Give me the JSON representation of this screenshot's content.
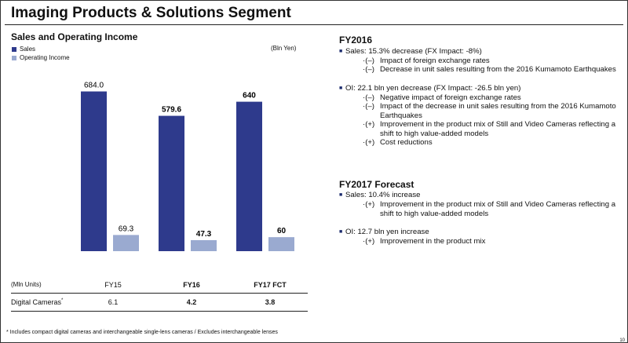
{
  "title": "Imaging Products & Solutions Segment",
  "chart_title": "Sales and Operating Income",
  "unit_label": "(Bln Yen)",
  "legend": [
    {
      "label": "Sales",
      "color": "#2e3a8c"
    },
    {
      "label": "Operating Income",
      "color": "#9aaad0"
    }
  ],
  "chart_data": {
    "type": "bar",
    "title": "Sales and Operating Income",
    "categories": [
      "FY15",
      "FY16",
      "FY17 FCT"
    ],
    "series": [
      {
        "name": "Sales",
        "values": [
          684.0,
          579.6,
          640
        ],
        "labels": [
          "684.0",
          "579.6",
          "640"
        ],
        "color": "#2e3a8c"
      },
      {
        "name": "Operating Income",
        "values": [
          69.3,
          47.3,
          60
        ],
        "labels": [
          "69.3",
          "47.3",
          "60"
        ],
        "color": "#9aaad0"
      }
    ],
    "bold_categories": [
      "FY16",
      "FY17 FCT"
    ],
    "ylim": [
      0,
      800
    ]
  },
  "table": {
    "unit_label": "(Mln Units)",
    "columns": [
      "FY15",
      "FY16",
      "FY17 FCT"
    ],
    "row_label": "Digital Cameras",
    "row_label_sup": "*",
    "values": [
      "6.1",
      "4.2",
      "3.8"
    ]
  },
  "footnote": "* Includes compact digital cameras and interchangeable single-lens cameras / Excludes interchangeable lenses",
  "page_number": "10",
  "fy2016": {
    "heading": "FY2016",
    "sales_point": "Sales: 15.3% decrease (FX Impact:  -8%)",
    "sales_subs": [
      {
        "mark": "(–)",
        "text": "Impact of foreign exchange rates"
      },
      {
        "mark": "(–)",
        "text": "Decrease in unit sales resulting from the 2016 Kumamoto Earthquakes"
      }
    ],
    "oi_point": "OI: 22.1 bln yen decrease (FX Impact:  -26.5 bln yen)",
    "oi_subs": [
      {
        "mark": "(–)",
        "text": "Negative impact of foreign exchange rates"
      },
      {
        "mark": "(–)",
        "text": "Impact of the decrease in unit sales resulting from the 2016 Kumamoto Earthquakes"
      },
      {
        "mark": "(+)",
        "text": "Improvement in the product mix of Still and Video Cameras reflecting a shift to high value-added models"
      },
      {
        "mark": "(+)",
        "text": "Cost reductions"
      }
    ]
  },
  "fy2017": {
    "heading": "FY2017 Forecast",
    "sales_point": "Sales: 10.4% increase",
    "sales_subs": [
      {
        "mark": "(+)",
        "text": "Improvement in the product mix of Still and Video Cameras reflecting a shift to high value-added models"
      }
    ],
    "oi_point": "OI: 12.7 bln yen increase",
    "oi_subs": [
      {
        "mark": "(+)",
        "text": "Improvement in the product mix"
      }
    ]
  }
}
